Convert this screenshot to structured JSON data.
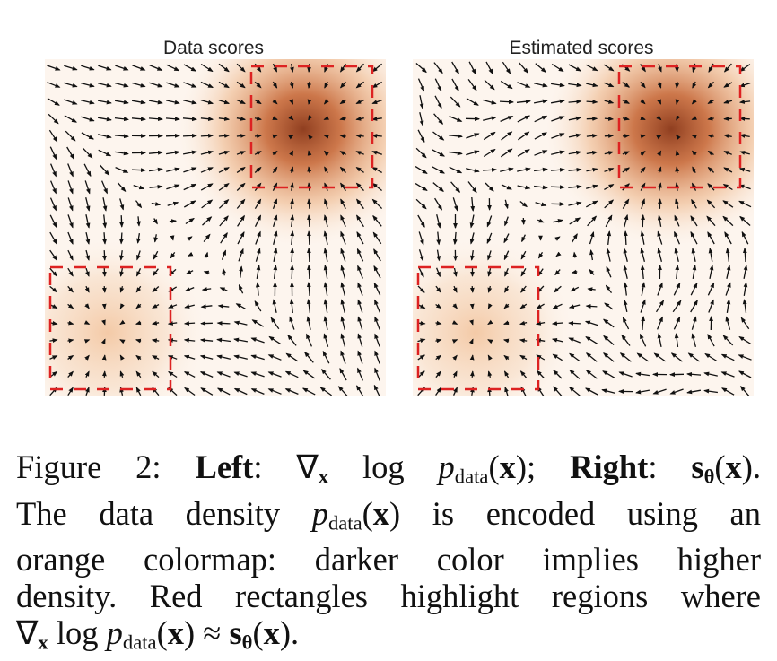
{
  "panels": [
    {
      "title": "Data scores"
    },
    {
      "title": "Estimated scores"
    }
  ],
  "colors": {
    "density": "#c4612e",
    "highlight": "#dd2222",
    "arrow": "#111111"
  },
  "caption": {
    "figure_label": "Figure 2:",
    "left_label": "Left",
    "colon": ":",
    "grad_symbol": "∇",
    "x_bold": "x",
    "log": "log",
    "p": "p",
    "data_sub": "data",
    "open_paren": "(",
    "close_paren": ")",
    "semicolon": ";",
    "right_label": "Right",
    "s_bold": "s",
    "theta": "θ",
    "period": ".",
    "line2_pre": "The data density",
    "line2_post": "is encoded using an",
    "line3": "orange colormap:  darker color implies higher",
    "line4": "density. Red rectangles highlight regions where",
    "approx": "≈"
  }
}
